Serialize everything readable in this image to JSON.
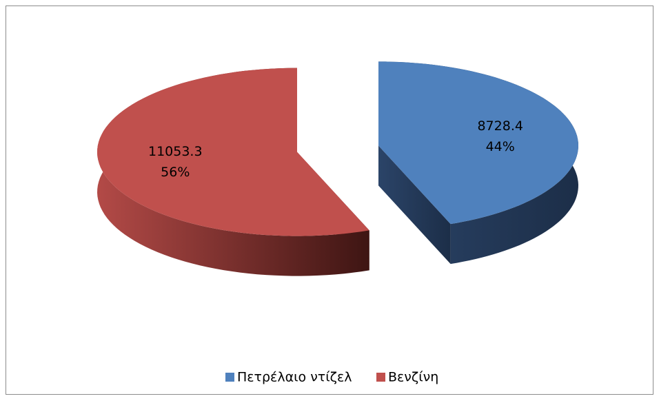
{
  "chart_data": {
    "type": "pie",
    "categories": [
      "Πετρέλαιο ντίζελ",
      "Βενζίνη"
    ],
    "values": [
      8728.4,
      11053.3
    ],
    "percent_labels": [
      "44%",
      "56%"
    ],
    "colors": [
      "#4f81bd",
      "#c0504d"
    ],
    "legend": "bottom"
  }
}
